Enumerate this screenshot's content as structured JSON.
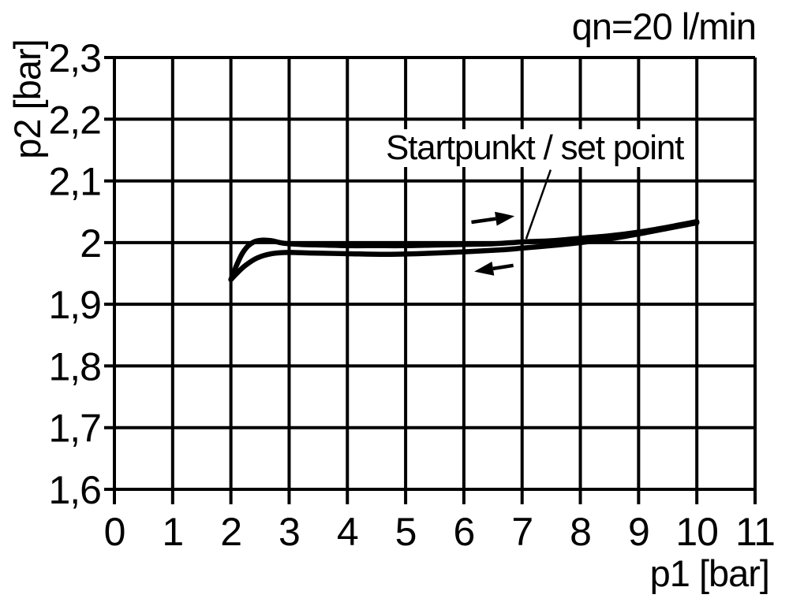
{
  "title": "qn=20 l/min",
  "annotation": {
    "label": "Startpunkt / set point"
  },
  "axes": {
    "x_label": "p1 [bar]",
    "y_label": "p2 [bar]"
  },
  "colors": {
    "foreground": "#000000",
    "background": "#ffffff"
  },
  "chart_data": {
    "type": "line",
    "title": "qn=20 l/min",
    "xlabel": "p1 [bar]",
    "ylabel": "p2 [bar]",
    "xlim": [
      0,
      11
    ],
    "ylim": [
      1.6,
      2.3
    ],
    "grid": true,
    "x_ticks": [
      0,
      1,
      2,
      3,
      4,
      5,
      6,
      7,
      8,
      9,
      10,
      11
    ],
    "x_tick_labels": [
      "0",
      "1",
      "2",
      "3",
      "4",
      "5",
      "6",
      "7",
      "8",
      "9",
      "10",
      "11"
    ],
    "y_ticks": [
      2.3,
      2.2,
      2.1,
      2.0,
      1.9,
      1.8,
      1.7,
      1.6
    ],
    "y_tick_labels": [
      "2,3",
      "2,2",
      "2,1",
      "2",
      "1,9",
      "1,8",
      "1,7",
      "1,6"
    ],
    "set_point": {
      "x": 7,
      "y": 2.0
    },
    "series": [
      {
        "name": "increasing-p1",
        "x": [
          2.0,
          2.05,
          2.12,
          2.2,
          2.3,
          2.42,
          2.55,
          2.7,
          2.9,
          3.2,
          3.6,
          4.0,
          4.5,
          5.0,
          5.5,
          6.0,
          6.5,
          7.0,
          7.5,
          8.0,
          8.5,
          9.0,
          9.5,
          10.0
        ],
        "y": [
          1.94,
          1.952,
          1.968,
          1.983,
          1.995,
          2.002,
          2.004,
          2.003,
          1.999,
          1.997,
          1.996,
          1.995,
          1.995,
          1.995,
          1.996,
          1.997,
          1.998,
          2.001,
          2.003,
          2.007,
          2.011,
          2.017,
          2.025,
          2.034
        ]
      },
      {
        "name": "decreasing-p1",
        "x": [
          2.0,
          2.1,
          2.25,
          2.45,
          2.7,
          3.0,
          3.4,
          4.0,
          4.6,
          5.2,
          6.0,
          6.6,
          7.0,
          7.6,
          8.0,
          8.5,
          9.0,
          9.5,
          10.0
        ],
        "y": [
          1.94,
          1.95,
          1.963,
          1.975,
          1.982,
          1.984,
          1.983,
          1.982,
          1.981,
          1.982,
          1.985,
          1.988,
          1.991,
          1.996,
          2.0,
          2.006,
          2.014,
          2.023,
          2.032
        ]
      }
    ],
    "annotations": [
      {
        "type": "leader-line",
        "from": {
          "x": 7.49,
          "y": 2.118
        },
        "to": {
          "x": 7.07,
          "y": 2.006
        },
        "text": "Startpunkt / set point"
      },
      {
        "type": "arrow",
        "direction": "right",
        "from": {
          "x": 6.13,
          "y": 2.033
        },
        "to": {
          "x": 6.87,
          "y": 2.043
        }
      },
      {
        "type": "arrow",
        "direction": "left",
        "from": {
          "x": 6.85,
          "y": 1.963
        },
        "to": {
          "x": 6.18,
          "y": 1.953
        }
      }
    ]
  }
}
